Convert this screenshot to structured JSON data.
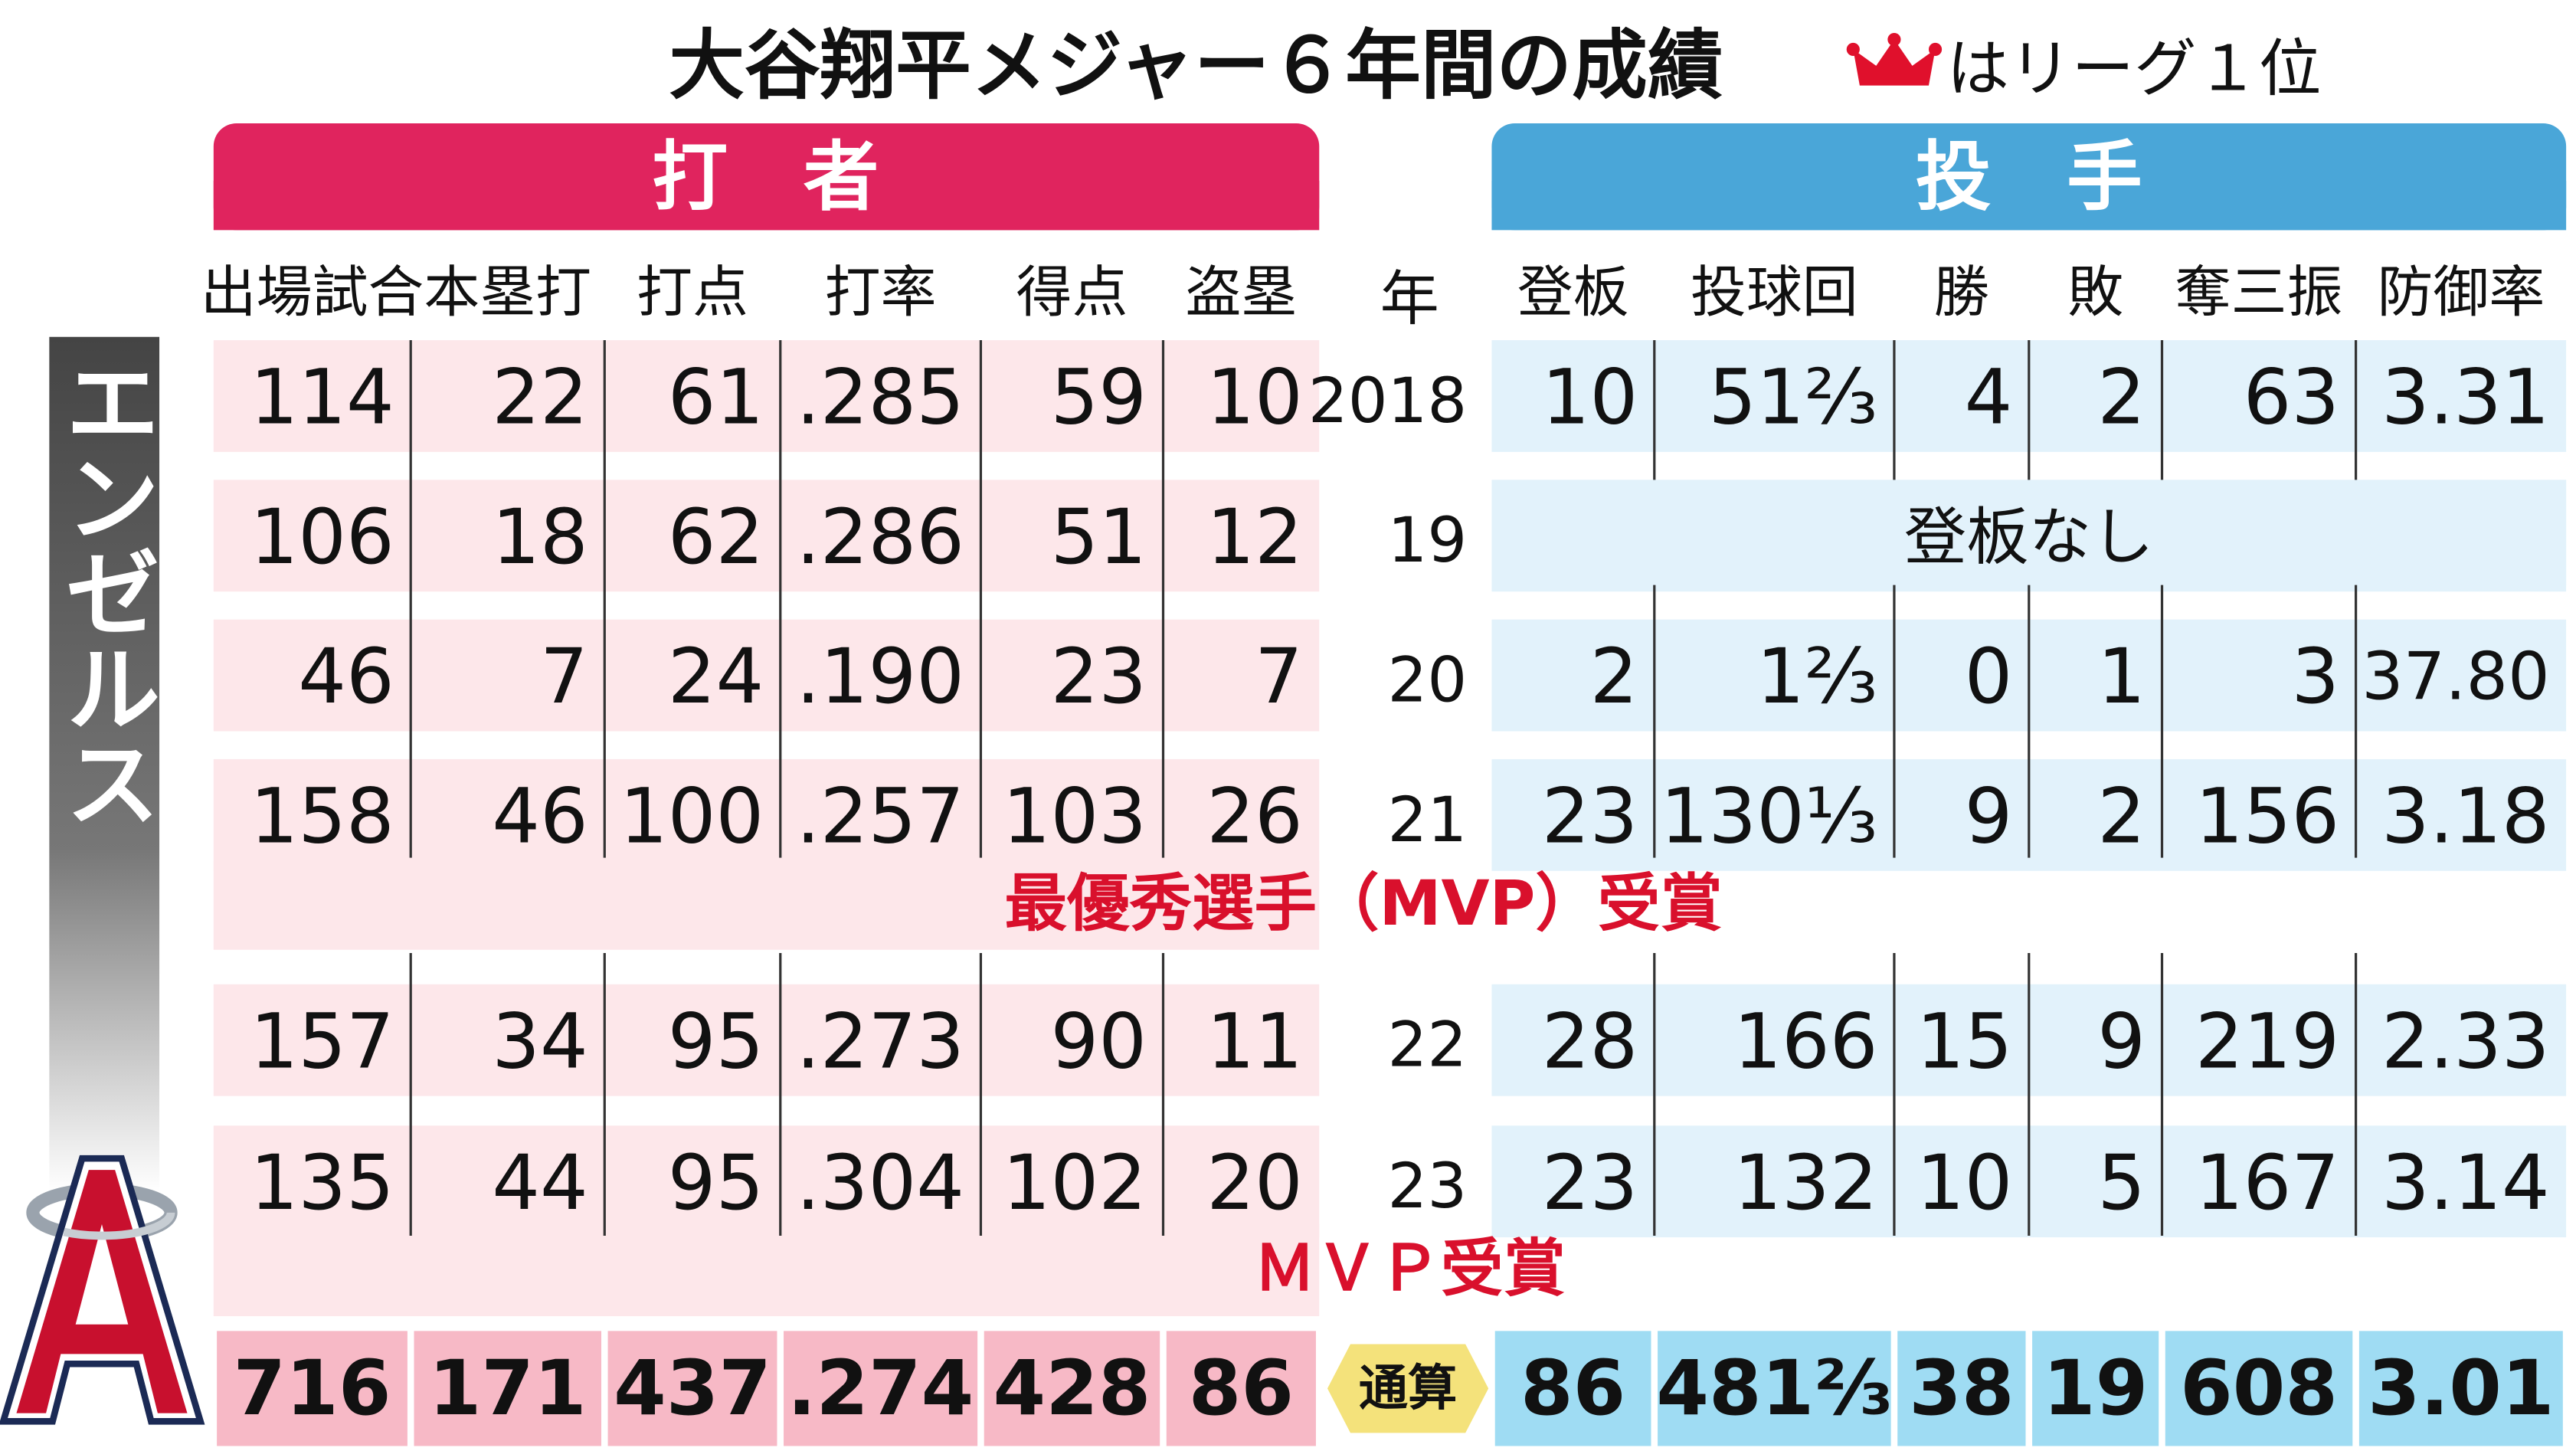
{
  "title": "大谷翔平メジャー６年間の成績",
  "legend": "はリーグ１位",
  "team": "エンゼルス",
  "year_label": "年",
  "years": [
    2018,
    19,
    20,
    21,
    22,
    23
  ],
  "total_label": "通算",
  "notes": [
    "最優秀選手（MVP）受賞",
    "ＭＶＰ受賞"
  ],
  "batting": {
    "title": "打　者",
    "columns": [
      "出場試合",
      "本塁打",
      "打点",
      "打率",
      "得点",
      "盗塁"
    ],
    "rows": [
      [
        114,
        22,
        61,
        ".285",
        59,
        10
      ],
      [
        106,
        18,
        62,
        ".286",
        51,
        12
      ],
      [
        46,
        7,
        24,
        ".190",
        23,
        7
      ],
      [
        158,
        46,
        100,
        ".257",
        103,
        26
      ],
      [
        157,
        34,
        95,
        ".273",
        90,
        11
      ],
      [
        135,
        44,
        95,
        ".304",
        102,
        20
      ]
    ],
    "total": [
      716,
      171,
      437,
      ".274",
      428,
      86
    ]
  },
  "pitching": {
    "title": "投　手",
    "columns": [
      "登板",
      "投球回",
      "勝",
      "敗",
      "奪三振",
      "防御率"
    ],
    "rows": [
      [
        10,
        "51⅔",
        4,
        2,
        63,
        "3.31"
      ],
      [
        "登板なし"
      ],
      [
        2,
        "1⅔",
        0,
        1,
        3,
        "37.80"
      ],
      [
        23,
        "130⅓",
        9,
        2,
        156,
        "3.18"
      ],
      [
        28,
        166,
        15,
        9,
        219,
        "2.33"
      ],
      [
        23,
        132,
        10,
        5,
        167,
        "3.14"
      ]
    ],
    "total": [
      86,
      "481⅔",
      38,
      19,
      608,
      "3.01"
    ]
  }
}
